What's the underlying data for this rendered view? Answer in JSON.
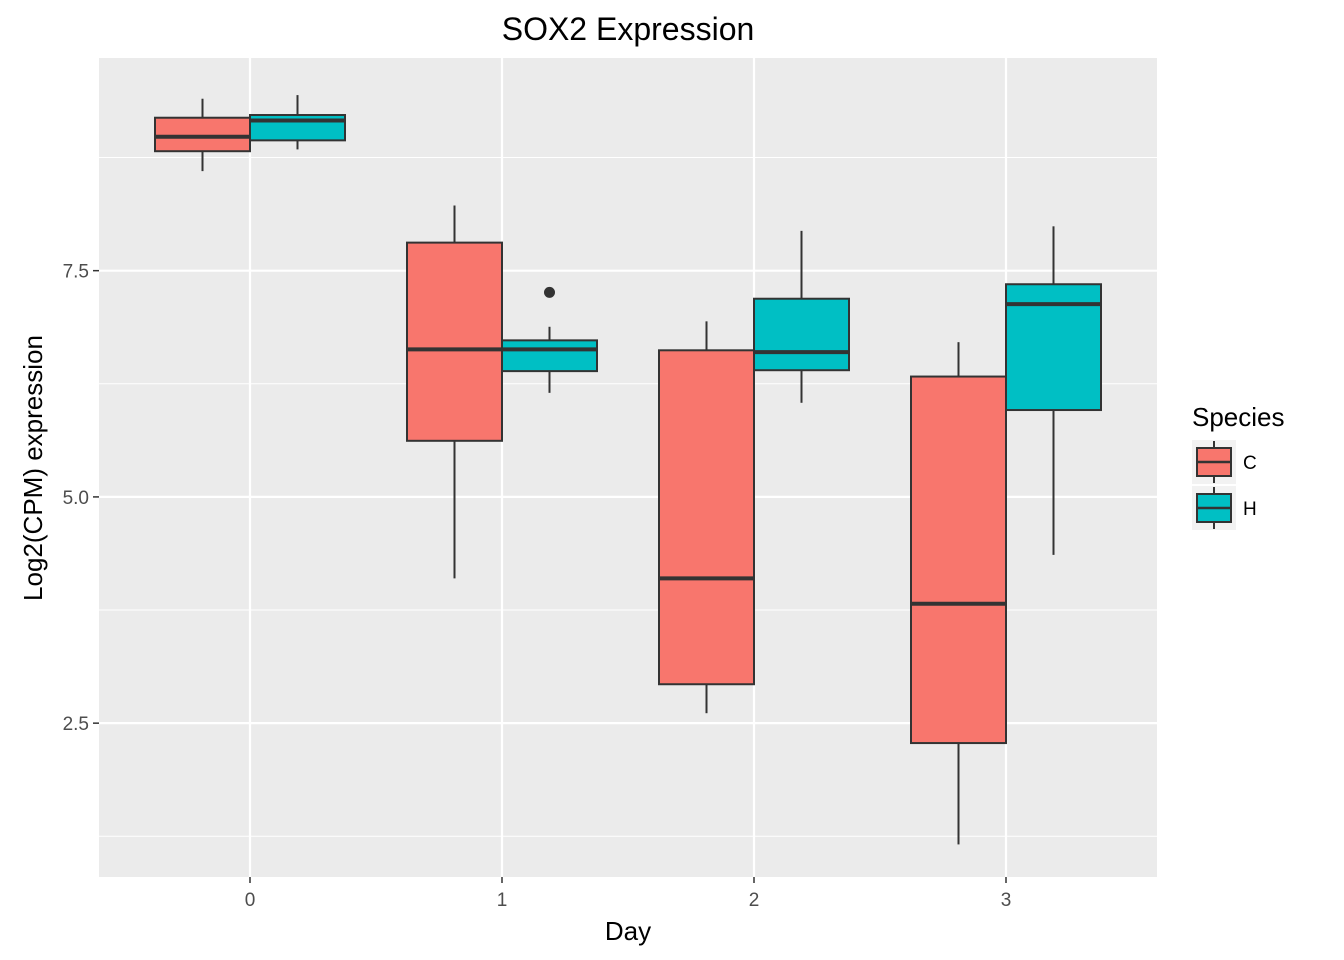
{
  "chart_data": {
    "type": "boxplot",
    "title": "SOX2 Expression",
    "xlabel": "Day",
    "ylabel": "Log2(CPM) expression",
    "categories": [
      "0",
      "1",
      "2",
      "3"
    ],
    "ylim": [
      0.8,
      9.85
    ],
    "yticks": [
      2.5,
      5.0,
      7.5
    ],
    "ytick_labels": [
      "2.5",
      "5.0",
      "7.5"
    ],
    "grid": true,
    "legend": {
      "title": "Species",
      "position": "right"
    },
    "series": [
      {
        "name": "C",
        "color": "#F8766D",
        "boxes": [
          {
            "whisker_low": 8.6,
            "q1": 8.82,
            "median": 8.98,
            "q3": 9.19,
            "whisker_high": 9.4
          },
          {
            "whisker_low": 4.1,
            "q1": 5.62,
            "median": 6.63,
            "q3": 7.81,
            "whisker_high": 8.22
          },
          {
            "whisker_low": 2.61,
            "q1": 2.93,
            "median": 4.1,
            "q3": 6.62,
            "whisker_high": 6.94
          },
          {
            "whisker_low": 1.16,
            "q1": 2.28,
            "median": 3.82,
            "q3": 6.33,
            "whisker_high": 6.71
          }
        ],
        "outliers": [
          [],
          [],
          [],
          []
        ]
      },
      {
        "name": "H",
        "color": "#00BFC4",
        "boxes": [
          {
            "whisker_low": 8.84,
            "q1": 8.94,
            "median": 9.16,
            "q3": 9.22,
            "whisker_high": 9.44
          },
          {
            "whisker_low": 6.15,
            "q1": 6.39,
            "median": 6.63,
            "q3": 6.73,
            "whisker_high": 6.88
          },
          {
            "whisker_low": 6.04,
            "q1": 6.4,
            "median": 6.6,
            "q3": 7.19,
            "whisker_high": 7.94
          },
          {
            "whisker_low": 4.36,
            "q1": 5.96,
            "median": 7.13,
            "q3": 7.35,
            "whisker_high": 7.99
          }
        ],
        "outliers": [
          [],
          [
            7.26
          ],
          [],
          []
        ]
      }
    ]
  }
}
